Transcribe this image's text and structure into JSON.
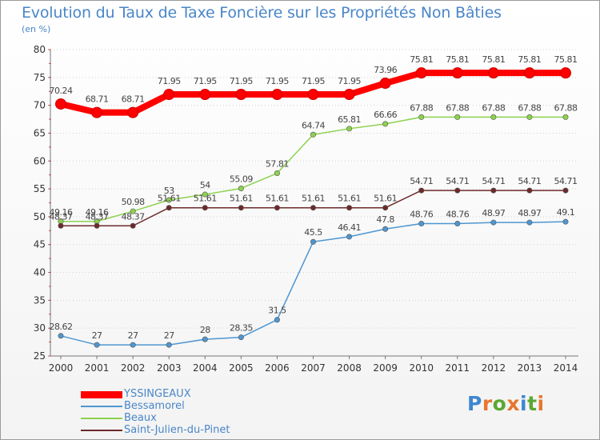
{
  "title": "Evolution du Taux de Taxe Foncière sur les Propriétés Non Bâties",
  "unit_label": "(en %)",
  "logo_text": "Proxiti",
  "chart_data": {
    "type": "line",
    "title": "Evolution du Taux de Taxe Foncière sur les Propriétés Non Bâties",
    "ylabel": "(en %)",
    "xlabel": "",
    "categories": [
      "2000",
      "2001",
      "2002",
      "2003",
      "2004",
      "2005",
      "2006",
      "2007",
      "2008",
      "2009",
      "2010",
      "2011",
      "2012",
      "2013",
      "2014"
    ],
    "ylim": [
      25,
      80
    ],
    "yticks": [
      25,
      30,
      35,
      40,
      45,
      50,
      55,
      60,
      65,
      70,
      75,
      80
    ],
    "grid": "horizontal dotted",
    "legend": "bottom-left",
    "series": [
      {
        "name": "YSSINGEAUX",
        "color": "#ff0000",
        "emphasis": true,
        "values": [
          70.24,
          68.71,
          68.71,
          71.95,
          71.95,
          71.95,
          71.95,
          71.95,
          71.95,
          73.96,
          75.81,
          75.81,
          75.81,
          75.81,
          75.81
        ],
        "labels": [
          "70.24",
          "68.71",
          "68.71",
          "71.95",
          "71.95",
          "71.95",
          "71.95",
          "71.95",
          "71.95",
          "73.96",
          "75.81",
          "75.81",
          "75.81",
          "75.81",
          "75.81"
        ]
      },
      {
        "name": "Bessamorel",
        "color": "#4f96d0",
        "values": [
          28.62,
          27,
          27,
          27,
          28,
          28.35,
          31.5,
          45.5,
          46.41,
          47.8,
          48.76,
          48.76,
          48.97,
          48.97,
          49.1
        ],
        "labels": [
          "28.62",
          "27",
          "27",
          "27",
          "28",
          "28.35",
          "31.5",
          "45.5",
          "46.41",
          "47.8",
          "48.76",
          "48.76",
          "48.97",
          "48.97",
          "49.1"
        ]
      },
      {
        "name": "Beaux",
        "color": "#8cd24e",
        "values": [
          49.16,
          49.16,
          50.98,
          53,
          54,
          55.09,
          57.81,
          64.74,
          65.81,
          66.66,
          67.88,
          67.88,
          67.88,
          67.88,
          67.88
        ],
        "labels": [
          "49.16",
          "49.16",
          "50.98",
          "53",
          "54",
          "55.09",
          "57.81",
          "64.74",
          "65.81",
          "66.66",
          "67.88",
          "67.88",
          "67.88",
          "67.88",
          "67.88"
        ]
      },
      {
        "name": "Saint-Julien-du-Pinet",
        "color": "#6e2a2a",
        "values": [
          48.37,
          48.37,
          48.37,
          51.61,
          51.61,
          51.61,
          51.61,
          51.61,
          51.61,
          51.61,
          54.71,
          54.71,
          54.71,
          54.71,
          54.71
        ],
        "labels": [
          "48.37",
          "48.37",
          "48.37",
          "51.61",
          "51.61",
          "51.61",
          "51.61",
          "51.61",
          "51.61",
          "51.61",
          "54.71",
          "54.71",
          "54.71",
          "54.71",
          "54.71"
        ]
      }
    ]
  }
}
